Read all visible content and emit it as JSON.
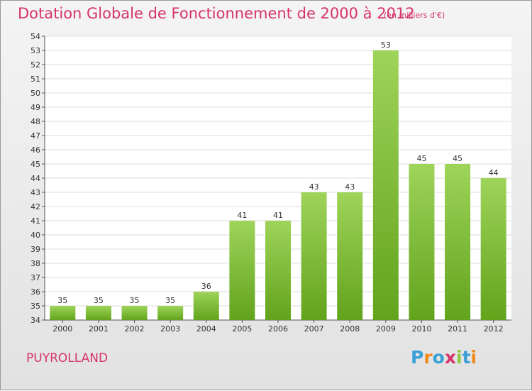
{
  "chart_data": {
    "type": "bar",
    "title": "Dotation Globale de Fonctionnement de 2000 à 2012",
    "subtitle": "(en milliers d'€)",
    "categories": [
      "2000",
      "2001",
      "2002",
      "2003",
      "2004",
      "2005",
      "2006",
      "2007",
      "2008",
      "2009",
      "2010",
      "2011",
      "2012"
    ],
    "values": [
      35,
      35,
      35,
      35,
      36,
      41,
      41,
      43,
      43,
      53,
      45,
      45,
      44
    ],
    "ylim": [
      34,
      54
    ],
    "yticks": [
      34,
      35,
      36,
      37,
      38,
      39,
      40,
      41,
      42,
      43,
      44,
      45,
      46,
      47,
      48,
      49,
      50,
      51,
      52,
      53,
      54
    ],
    "grid": true,
    "bar_color_top": "#9ed45a",
    "bar_color_bottom": "#62a31c"
  },
  "place": "PUYROLLAND",
  "logo": {
    "letters": [
      "P",
      "r",
      "o",
      "x",
      "i",
      "t",
      "i"
    ],
    "colors": [
      "#3aa0d8",
      "#f08a1c",
      "#3aa0d8",
      "#d6336c",
      "#8dc63f",
      "#3aa0d8",
      "#f08a1c"
    ]
  }
}
